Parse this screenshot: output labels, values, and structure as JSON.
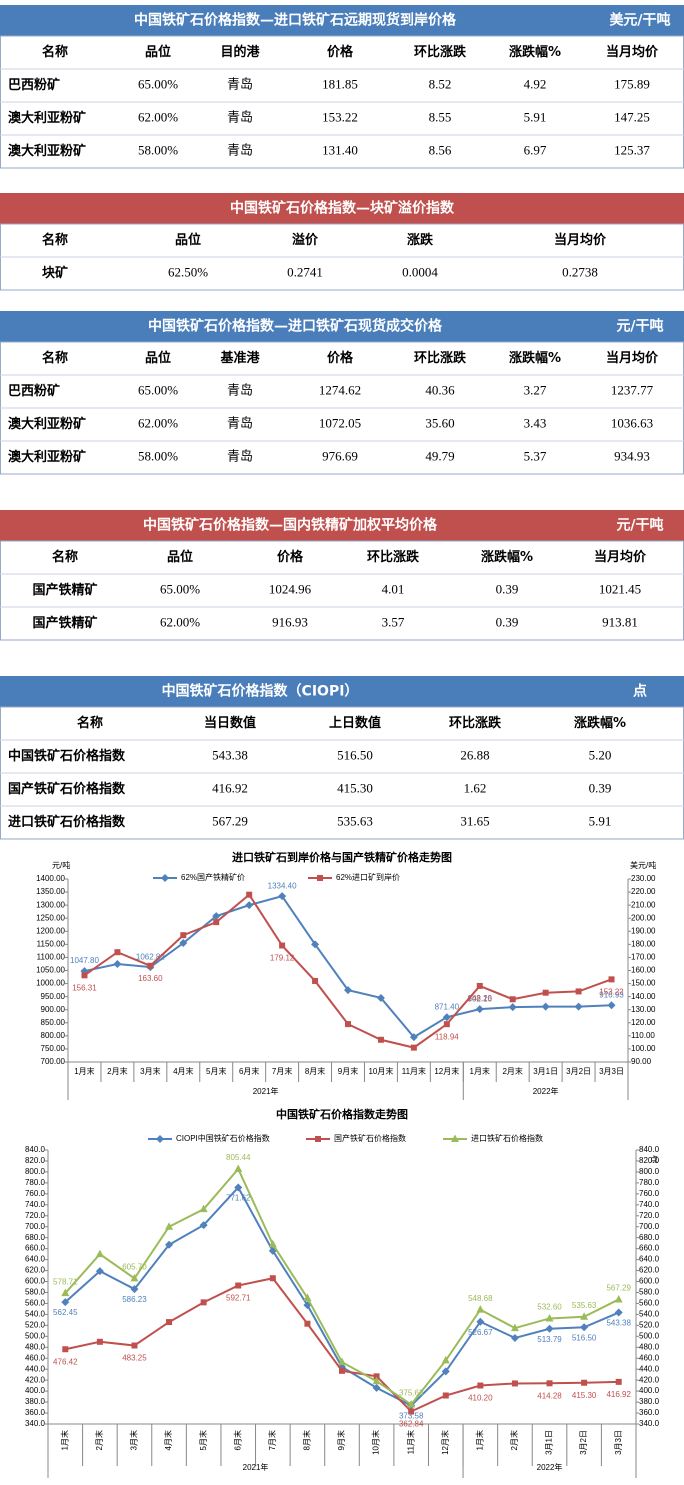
{
  "tables": [
    {
      "title": "中国铁矿石价格指数—进口铁矿石远期现货到岸价格",
      "unit": "美元/干吨",
      "header": [
        "名称",
        "品位",
        "目的港",
        "价格",
        "环比涨跌",
        "涨跌幅%",
        "当月均价"
      ],
      "rows": [
        [
          "巴西粉矿",
          "65.00%",
          "青岛",
          "181.85",
          "8.52",
          "4.92",
          "175.89"
        ],
        [
          "澳大利亚粉矿",
          "62.00%",
          "青岛",
          "153.22",
          "8.55",
          "5.91",
          "147.25"
        ],
        [
          "澳大利亚粉矿",
          "58.00%",
          "青岛",
          "131.40",
          "8.56",
          "6.97",
          "125.37"
        ]
      ]
    },
    {
      "title": "中国铁矿石价格指数—块矿溢价指数",
      "header": [
        "名称",
        "品位",
        "溢价",
        "涨跌",
        "当月均价"
      ],
      "rows": [
        [
          "块矿",
          "62.50%",
          "0.2741",
          "0.0004",
          "0.2738"
        ]
      ]
    },
    {
      "title": "中国铁矿石价格指数—进口铁矿石现货成交价格",
      "unit": "元/干吨",
      "header": [
        "名称",
        "品位",
        "基准港",
        "价格",
        "环比涨跌",
        "涨跌幅%",
        "当月均价"
      ],
      "rows": [
        [
          "巴西粉矿",
          "65.00%",
          "青岛",
          "1274.62",
          "40.36",
          "3.27",
          "1237.77"
        ],
        [
          "澳大利亚粉矿",
          "62.00%",
          "青岛",
          "1072.05",
          "35.60",
          "3.43",
          "1036.63"
        ],
        [
          "澳大利亚粉矿",
          "58.00%",
          "青岛",
          "976.69",
          "49.79",
          "5.37",
          "934.93"
        ]
      ]
    },
    {
      "title": "中国铁矿石价格指数—国内铁精矿加权平均价格",
      "unit": "元/干吨",
      "header": [
        "名称",
        "品位",
        "价格",
        "环比涨跌",
        "涨跌幅%",
        "当月均价"
      ],
      "rows": [
        [
          "国产铁精矿",
          "65.00%",
          "1024.96",
          "4.01",
          "0.39",
          "1021.45"
        ],
        [
          "国产铁精矿",
          "62.00%",
          "916.93",
          "3.57",
          "0.39",
          "913.81"
        ]
      ]
    },
    {
      "title": "中国铁矿石价格指数（CIOPI）",
      "unit": "点",
      "header": [
        "名称",
        "当日数值",
        "上日数值",
        "环比涨跌",
        "涨跌幅%"
      ],
      "rows": [
        [
          "中国铁矿石价格指数",
          "543.38",
          "516.50",
          "26.88",
          "5.20"
        ],
        [
          "国产铁矿石价格指数",
          "416.92",
          "415.30",
          "1.62",
          "0.39"
        ],
        [
          "进口铁矿石价格指数",
          "567.29",
          "535.63",
          "31.65",
          "5.91"
        ]
      ]
    }
  ],
  "chart_data": [
    {
      "type": "line",
      "title": "进口铁矿石到岸价格与国产铁精矿价格走势图",
      "y_label": "元/吨",
      "y2_label": "美元/吨",
      "categories": [
        "1月末",
        "2月末",
        "3月末",
        "4月末",
        "5月末",
        "6月末",
        "7月末",
        "8月末",
        "9月末",
        "10月末",
        "11月末",
        "12月末",
        "1月末",
        "2月末",
        "3月1日",
        "3月2日",
        "3月3日"
      ],
      "x_groups": [
        "2021年",
        "2022年"
      ],
      "ylim": [
        700,
        1400
      ],
      "yticks": [
        {
          "value": 700,
          "label": "700.00"
        },
        {
          "value": 750,
          "label": "750.00"
        },
        {
          "value": 800,
          "label": "800.00"
        },
        {
          "value": 850,
          "label": "850.00"
        },
        {
          "value": 900,
          "label": "900.00"
        },
        {
          "value": 950,
          "label": "950.00"
        },
        {
          "value": 1000,
          "label": "1000.00"
        },
        {
          "value": 1050,
          "label": "1050.00"
        },
        {
          "value": 1100,
          "label": "1100.00"
        },
        {
          "value": 1150,
          "label": "1150.00"
        },
        {
          "value": 1200,
          "label": "1200.00"
        },
        {
          "value": 1250,
          "label": "1250.00"
        },
        {
          "value": 1300,
          "label": "1300.00"
        },
        {
          "value": 1350,
          "label": "1350.00"
        },
        {
          "value": 1400,
          "label": "1400.00"
        }
      ],
      "y2lim": [
        90,
        230
      ],
      "y2ticks": [
        {
          "value": 90,
          "label": "90.00"
        },
        {
          "value": 100,
          "label": "100.00"
        },
        {
          "value": 110,
          "label": "110.00"
        },
        {
          "value": 120,
          "label": "120.00"
        },
        {
          "value": 130,
          "label": "130.00"
        },
        {
          "value": 140,
          "label": "140.00"
        },
        {
          "value": 150,
          "label": "150.00"
        },
        {
          "value": 160,
          "label": "160.00"
        },
        {
          "value": 170,
          "label": "170.00"
        },
        {
          "value": 180,
          "label": "180.00"
        },
        {
          "value": 190,
          "label": "190.00"
        },
        {
          "value": 200,
          "label": "200.00"
        },
        {
          "value": 210,
          "label": "210.00"
        },
        {
          "value": 220,
          "label": "220.00"
        },
        {
          "value": 230,
          "label": "230.00"
        }
      ],
      "series": [
        {
          "name": "62%国产铁精矿价",
          "color": "#4f81bd",
          "marker": "diamond",
          "values": [
            1047.8,
            1075,
            1062.82,
            1155,
            1258,
            1300,
            1334.4,
            1150,
            975,
            945,
            795,
            871.4,
            902.16,
            910,
            912,
            912,
            916.93
          ],
          "value_labels": [
            "1047.80",
            null,
            "1062.82",
            null,
            null,
            null,
            "1334.40",
            null,
            null,
            null,
            null,
            "871.40",
            "902.16",
            null,
            null,
            null,
            "916.93"
          ]
        },
        {
          "name": "62%进口矿到岸价",
          "color": "#c0504d",
          "marker": "square",
          "axis": "y2",
          "values": [
            156.31,
            174,
            163.6,
            187,
            197,
            218,
            179.12,
            152,
            119,
            107,
            101,
            118.94,
            148.2,
            138,
            143,
            144,
            153.22
          ],
          "value_labels": [
            "156.31",
            null,
            "163.60",
            null,
            null,
            null,
            "179.12",
            null,
            null,
            null,
            null,
            "118.94",
            "148.20",
            null,
            null,
            null,
            "153.22"
          ]
        }
      ]
    },
    {
      "type": "line",
      "title": "中国铁矿石价格指数走势图",
      "y2_label": "点",
      "categories": [
        "1月末",
        "2月末",
        "3月末",
        "4月末",
        "5月末",
        "6月末",
        "7月末",
        "8月末",
        "9月末",
        "10月末",
        "11月末",
        "12月末",
        "1月末",
        "2月末",
        "3月1日",
        "3月2日",
        "3月3日"
      ],
      "x_groups": [
        "2021年",
        "2022年"
      ],
      "ylim": [
        340,
        840
      ],
      "yticks": [
        {
          "value": 340,
          "label": "340.0"
        },
        {
          "value": 360,
          "label": "360.0"
        },
        {
          "value": 380,
          "label": "380.0"
        },
        {
          "value": 400,
          "label": "400.0"
        },
        {
          "value": 420,
          "label": "420.0"
        },
        {
          "value": 440,
          "label": "440.0"
        },
        {
          "value": 460,
          "label": "460.0"
        },
        {
          "value": 480,
          "label": "480.0"
        },
        {
          "value": 500,
          "label": "500.0"
        },
        {
          "value": 520,
          "label": "520.0"
        },
        {
          "value": 540,
          "label": "540.0"
        },
        {
          "value": 560,
          "label": "560.0"
        },
        {
          "value": 580,
          "label": "580.0"
        },
        {
          "value": 600,
          "label": "600.0"
        },
        {
          "value": 620,
          "label": "620.0"
        },
        {
          "value": 640,
          "label": "640.0"
        },
        {
          "value": 660,
          "label": "660.0"
        },
        {
          "value": 680,
          "label": "680.0"
        },
        {
          "value": 700,
          "label": "700.0"
        },
        {
          "value": 720,
          "label": "720.0"
        },
        {
          "value": 740,
          "label": "740.0"
        },
        {
          "value": 760,
          "label": "760.0"
        },
        {
          "value": 780,
          "label": "780.0"
        },
        {
          "value": 800,
          "label": "800.0"
        },
        {
          "value": 820,
          "label": "820.0"
        },
        {
          "value": 840,
          "label": "840.0"
        }
      ],
      "y2lim": [
        340,
        840
      ],
      "y2ticks": [
        {
          "value": 340,
          "label": "340.0"
        },
        {
          "value": 360,
          "label": "360.0"
        },
        {
          "value": 380,
          "label": "380.0"
        },
        {
          "value": 400,
          "label": "400.0"
        },
        {
          "value": 420,
          "label": "420.0"
        },
        {
          "value": 440,
          "label": "440.0"
        },
        {
          "value": 460,
          "label": "460.0"
        },
        {
          "value": 480,
          "label": "480.0"
        },
        {
          "value": 500,
          "label": "500.0"
        },
        {
          "value": 520,
          "label": "520.0"
        },
        {
          "value": 540,
          "label": "540.0"
        },
        {
          "value": 560,
          "label": "560.0"
        },
        {
          "value": 580,
          "label": "580.0"
        },
        {
          "value": 600,
          "label": "600.0"
        },
        {
          "value": 620,
          "label": "620.0"
        },
        {
          "value": 640,
          "label": "640.0"
        },
        {
          "value": 660,
          "label": "660.0"
        },
        {
          "value": 680,
          "label": "680.0"
        },
        {
          "value": 700,
          "label": "700.0"
        },
        {
          "value": 720,
          "label": "720.0"
        },
        {
          "value": 740,
          "label": "740.0"
        },
        {
          "value": 760,
          "label": "760.0"
        },
        {
          "value": 780,
          "label": "780.0"
        },
        {
          "value": 800,
          "label": "800.0"
        },
        {
          "value": 820,
          "label": "820.0"
        },
        {
          "value": 840,
          "label": "840.0"
        }
      ],
      "series": [
        {
          "name": "CIOPI中国铁矿石价格指数",
          "color": "#4f81bd",
          "marker": "diamond",
          "values": [
            562.45,
            619,
            586.23,
            667,
            703,
            771.62,
            656,
            557,
            444,
            406,
            373.58,
            436,
            526.67,
            497,
            513.79,
            516.5,
            543.38
          ],
          "value_labels": [
            "562.45",
            null,
            "586.23",
            null,
            null,
            "771.62",
            null,
            null,
            null,
            null,
            "373.58",
            null,
            "526.67",
            null,
            "513.79",
            "516.50",
            "543.38"
          ]
        },
        {
          "name": "国产铁矿石价格指数",
          "color": "#c0504d",
          "marker": "square",
          "values": [
            476.42,
            490,
            483.25,
            526,
            562,
            592.71,
            606,
            523,
            437,
            427,
            362.84,
            392,
            410.2,
            414,
            414.28,
            415.3,
            416.92
          ],
          "value_labels": [
            "476.42",
            null,
            "483.25",
            null,
            null,
            "592.71",
            null,
            null,
            null,
            null,
            "362.84",
            null,
            "410.20",
            null,
            "414.28",
            "415.30",
            "416.92"
          ]
        },
        {
          "name": "进口铁矿石价格指数",
          "color": "#9bbb59",
          "marker": "triangle",
          "values": [
            578.71,
            650,
            605.7,
            700,
            732,
            805.44,
            668,
            570,
            453,
            418,
            375.63,
            456,
            548.68,
            515,
            532.6,
            535.63,
            567.29
          ],
          "value_labels": [
            "578.71",
            null,
            "605.70",
            null,
            null,
            "805.44",
            null,
            null,
            null,
            null,
            "375.63",
            null,
            "548.68",
            null,
            "532.60",
            "535.63",
            "567.29"
          ]
        }
      ]
    }
  ]
}
